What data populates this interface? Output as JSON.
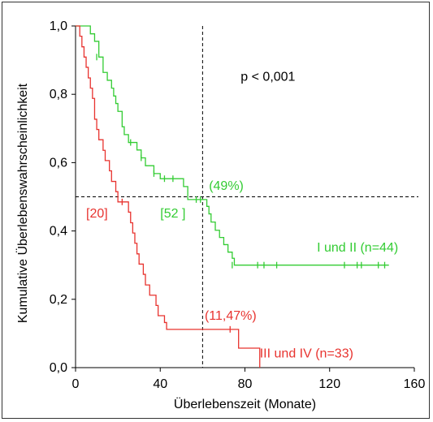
{
  "chart_data": {
    "type": "line",
    "subtype": "kaplan-meier-step",
    "xlabel": "Überlebenszeit (Monate)",
    "ylabel": "Kumulative Überlebenswahrscheinlichkeit",
    "xlim": [
      0,
      160
    ],
    "ylim": [
      0,
      1.0
    ],
    "xticks": [
      0,
      40,
      80,
      120,
      160
    ],
    "xtick_labels": [
      "0",
      "40",
      "80",
      "120",
      "160"
    ],
    "yticks": [
      0.0,
      0.2,
      0.4,
      0.6,
      0.8,
      1.0
    ],
    "ytick_labels": [
      "0,0",
      "0,2",
      "0,4",
      "0,6",
      "0,8",
      "1,0"
    ],
    "grid": false,
    "reference_lines": {
      "x": 60,
      "y": 0.5,
      "style": "dashed"
    },
    "annotations": [
      {
        "text": "p < 0,001",
        "x": 78,
        "y": 0.84,
        "color": "#000000"
      },
      {
        "text": "(49%)",
        "x": 63,
        "y": 0.52,
        "color": "#33cc33"
      },
      {
        "text": "[52 ]",
        "x": 40,
        "y": 0.44,
        "color": "#33cc33"
      },
      {
        "text": "[20]",
        "x": 5,
        "y": 0.44,
        "color": "#e8332f"
      },
      {
        "text": "(11,47%)",
        "x": 61,
        "y": 0.14,
        "color": "#e8332f"
      },
      {
        "text": "I und II (n=44)",
        "x": 114,
        "y": 0.34,
        "color": "#33cc33"
      },
      {
        "text": "III und IV (n=33)",
        "x": 87,
        "y": 0.03,
        "color": "#e8332f"
      }
    ],
    "series": [
      {
        "name": "I und II (n=44)",
        "color": "#33cc33",
        "steps": [
          [
            0,
            1.0
          ],
          [
            7,
            0.977
          ],
          [
            9,
            0.955
          ],
          [
            11,
            0.909
          ],
          [
            13,
            0.864
          ],
          [
            15,
            0.841
          ],
          [
            17,
            0.818
          ],
          [
            18,
            0.795
          ],
          [
            19,
            0.773
          ],
          [
            20,
            0.75
          ],
          [
            22,
            0.705
          ],
          [
            23,
            0.682
          ],
          [
            25,
            0.659
          ],
          [
            29,
            0.637
          ],
          [
            31,
            0.614
          ],
          [
            33,
            0.591
          ],
          [
            37,
            0.568
          ],
          [
            40,
            0.553
          ],
          [
            51,
            0.53
          ],
          [
            53,
            0.492
          ],
          [
            62,
            0.472
          ],
          [
            63,
            0.45
          ],
          [
            64,
            0.426
          ],
          [
            66,
            0.402
          ],
          [
            68,
            0.381
          ],
          [
            70,
            0.36
          ],
          [
            72,
            0.338
          ],
          [
            74,
            0.32
          ],
          [
            75,
            0.3
          ],
          [
            148,
            0.3
          ]
        ],
        "censored": [
          [
            10,
            0.909
          ],
          [
            26,
            0.659
          ],
          [
            31,
            0.614
          ],
          [
            37,
            0.568
          ],
          [
            42,
            0.553
          ],
          [
            46,
            0.553
          ],
          [
            57,
            0.492
          ],
          [
            59,
            0.492
          ],
          [
            74,
            0.3
          ],
          [
            86,
            0.3
          ],
          [
            89,
            0.3
          ],
          [
            95,
            0.3
          ],
          [
            127,
            0.3
          ],
          [
            133,
            0.3
          ],
          [
            135,
            0.3
          ],
          [
            143,
            0.3
          ],
          [
            146,
            0.3
          ]
        ]
      },
      {
        "name": "III und IV (n=33)",
        "color": "#e8332f",
        "steps": [
          [
            0,
            1.0
          ],
          [
            2,
            0.97
          ],
          [
            3,
            0.939
          ],
          [
            4,
            0.909
          ],
          [
            5,
            0.879
          ],
          [
            6,
            0.848
          ],
          [
            7,
            0.818
          ],
          [
            8,
            0.788
          ],
          [
            9,
            0.727
          ],
          [
            10,
            0.697
          ],
          [
            11,
            0.667
          ],
          [
            13,
            0.636
          ],
          [
            14,
            0.606
          ],
          [
            16,
            0.576
          ],
          [
            17,
            0.545
          ],
          [
            19,
            0.515
          ],
          [
            20,
            0.485
          ],
          [
            25,
            0.455
          ],
          [
            26,
            0.424
          ],
          [
            27,
            0.394
          ],
          [
            28,
            0.364
          ],
          [
            29,
            0.333
          ],
          [
            30,
            0.303
          ],
          [
            32,
            0.273
          ],
          [
            33,
            0.242
          ],
          [
            35,
            0.212
          ],
          [
            38,
            0.182
          ],
          [
            39,
            0.152
          ],
          [
            42,
            0.132
          ],
          [
            43,
            0.112
          ],
          [
            75,
            0.112
          ],
          [
            77,
            0.057
          ],
          [
            87,
            0.057
          ],
          [
            87,
            0.0
          ]
        ],
        "censored": [
          [
            22,
            0.485
          ],
          [
            73,
            0.112
          ]
        ]
      }
    ]
  }
}
